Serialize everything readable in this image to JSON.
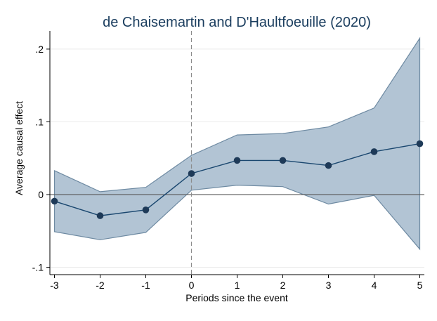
{
  "chart_data": {
    "type": "line",
    "title": "de Chaisemartin and D'Haultfoeuille (2020)",
    "xlabel": "Periods since the event",
    "ylabel": "Average causal effect",
    "x": [
      -3,
      -2,
      -1,
      0,
      1,
      2,
      3,
      4,
      5
    ],
    "x_ticks": [
      -3,
      -2,
      -1,
      0,
      1,
      2,
      3,
      4,
      5
    ],
    "x_tick_labels": [
      "-3",
      "-2",
      "-1",
      "0",
      "1",
      "2",
      "3",
      "4",
      "5"
    ],
    "y_ticks": [
      -0.1,
      0,
      0.1,
      0.2
    ],
    "y_tick_labels": [
      "-.1",
      "0",
      ".1",
      ".2"
    ],
    "xlim": [
      -3.1,
      5.1
    ],
    "ylim": [
      -0.11,
      0.225
    ],
    "series": [
      {
        "estimate": [
          -0.009,
          -0.029,
          -0.021,
          0.029,
          0.047,
          0.047,
          0.04,
          0.059,
          0.07
        ],
        "ci_lower": [
          -0.051,
          -0.062,
          -0.052,
          0.006,
          0.013,
          0.011,
          -0.013,
          -0.001,
          -0.075
        ],
        "ci_upper": [
          0.033,
          0.004,
          0.01,
          0.054,
          0.082,
          0.084,
          0.093,
          0.119,
          0.215
        ]
      }
    ],
    "reference_lines": {
      "x": 0,
      "y": 0
    },
    "grid": "horizontal",
    "legend": "none",
    "colors": {
      "title": "#1a3d5e",
      "band_fill": "#b2c4d4",
      "band_edge": "#6e8aa2",
      "line": "#1a476f",
      "marker": "#1e3a58",
      "grid": "#eaeaea",
      "zero_line": "#555555",
      "vline": "#8c8c8c",
      "axis": "#000000"
    }
  }
}
